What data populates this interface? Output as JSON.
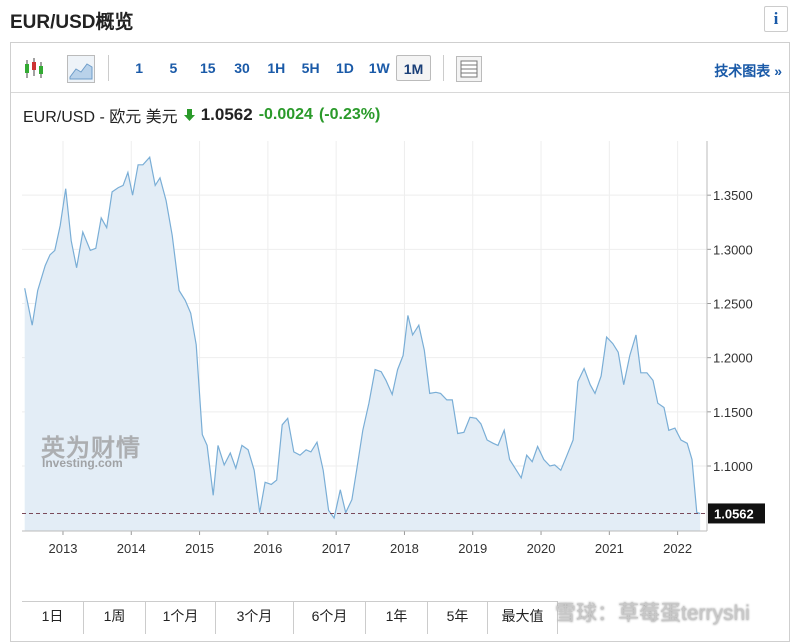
{
  "header": {
    "title": "EUR/USD概览",
    "info": "i"
  },
  "toolbar": {
    "intervals": [
      "1",
      "5",
      "15",
      "30",
      "1H",
      "5H",
      "1D",
      "1W",
      "1M"
    ],
    "selected_index": 8,
    "link": "技术图表 »"
  },
  "quote": {
    "name": "EUR/USD - 欧元 美元",
    "price": "1.0562",
    "change": "-0.0024",
    "change_pct": "(-0.23%)"
  },
  "ranges": [
    "1日",
    "1周",
    "1个月",
    "3个月",
    "6个月",
    "1年",
    "5年",
    "最大值"
  ],
  "watermark": {
    "logo_cn": "英为财情",
    "logo_en": "Investing.com",
    "credit": "雪球：草莓蛋terryshi"
  },
  "chart_data": {
    "type": "area",
    "color": "#7aaed6",
    "fill": "#e3edf6",
    "grid": true,
    "x": [
      2012.44,
      2012.55,
      2012.63,
      2012.74,
      2012.81,
      2012.88,
      2012.96,
      2013.04,
      2013.12,
      2013.2,
      2013.29,
      2013.4,
      2013.48,
      2013.56,
      2013.64,
      2013.72,
      2013.81,
      2013.88,
      2013.95,
      2014.02,
      2014.1,
      2014.17,
      2014.27,
      2014.35,
      2014.42,
      2014.51,
      2014.6,
      2014.7,
      2014.79,
      2014.87,
      2014.95,
      2015.04,
      2015.11,
      2015.2,
      2015.27,
      2015.36,
      2015.45,
      2015.53,
      2015.62,
      2015.71,
      2015.8,
      2015.88,
      2015.96,
      2016.05,
      2016.13,
      2016.21,
      2016.29,
      2016.38,
      2016.47,
      2016.56,
      2016.63,
      2016.72,
      2016.81,
      2016.89,
      2016.97,
      2017.06,
      2017.14,
      2017.23,
      2017.3,
      2017.39,
      2017.48,
      2017.57,
      2017.66,
      2017.73,
      2017.82,
      2017.9,
      2017.98,
      2018.05,
      2018.12,
      2018.21,
      2018.29,
      2018.37,
      2018.46,
      2018.53,
      2018.62,
      2018.7,
      2018.78,
      2018.87,
      2018.96,
      2019.05,
      2019.12,
      2019.21,
      2019.3,
      2019.37,
      2019.46,
      2019.54,
      2019.62,
      2019.71,
      2019.79,
      2019.87,
      2019.95,
      2020.04,
      2020.13,
      2020.2,
      2020.29,
      2020.38,
      2020.47,
      2020.54,
      2020.63,
      2020.72,
      2020.79,
      2020.88,
      2020.96,
      2021.05,
      2021.13,
      2021.21,
      2021.3,
      2021.39,
      2021.46,
      2021.55,
      2021.64,
      2021.71,
      2021.8,
      2021.87,
      2021.96,
      2022.05,
      2022.14,
      2022.21,
      2022.28,
      2022.33
    ],
    "values": [
      1.264,
      1.23,
      1.262,
      1.285,
      1.295,
      1.299,
      1.322,
      1.356,
      1.308,
      1.283,
      1.316,
      1.299,
      1.301,
      1.329,
      1.32,
      1.353,
      1.357,
      1.359,
      1.371,
      1.35,
      1.378,
      1.378,
      1.385,
      1.359,
      1.366,
      1.345,
      1.313,
      1.262,
      1.253,
      1.241,
      1.212,
      1.129,
      1.119,
      1.073,
      1.119,
      1.101,
      1.112,
      1.098,
      1.119,
      1.115,
      1.096,
      1.057,
      1.085,
      1.083,
      1.087,
      1.138,
      1.144,
      1.113,
      1.11,
      1.115,
      1.113,
      1.122,
      1.096,
      1.059,
      1.052,
      1.078,
      1.057,
      1.069,
      1.096,
      1.133,
      1.158,
      1.189,
      1.187,
      1.179,
      1.166,
      1.189,
      1.202,
      1.239,
      1.221,
      1.23,
      1.207,
      1.167,
      1.168,
      1.167,
      1.161,
      1.161,
      1.13,
      1.131,
      1.145,
      1.144,
      1.139,
      1.124,
      1.121,
      1.119,
      1.133,
      1.106,
      1.098,
      1.089,
      1.11,
      1.104,
      1.118,
      1.106,
      1.1,
      1.101,
      1.096,
      1.11,
      1.124,
      1.178,
      1.19,
      1.175,
      1.167,
      1.183,
      1.219,
      1.213,
      1.205,
      1.175,
      1.202,
      1.221,
      1.186,
      1.186,
      1.179,
      1.158,
      1.154,
      1.133,
      1.135,
      1.124,
      1.121,
      1.106,
      1.057,
      1.0562
    ],
    "xlim": [
      2012.4,
      2022.43
    ],
    "xticks": [
      2013,
      2014,
      2015,
      2016,
      2017,
      2018,
      2019,
      2020,
      2021,
      2022
    ],
    "ylim": [
      1.04,
      1.4
    ],
    "yticks": [
      {
        "value": 1.1,
        "label": "1.1000"
      },
      {
        "value": 1.15,
        "label": "1.1500"
      },
      {
        "value": 1.2,
        "label": "1.2000"
      },
      {
        "value": 1.25,
        "label": "1.2500"
      },
      {
        "value": 1.3,
        "label": "1.3000"
      },
      {
        "value": 1.35,
        "label": "1.3500"
      }
    ]
  }
}
